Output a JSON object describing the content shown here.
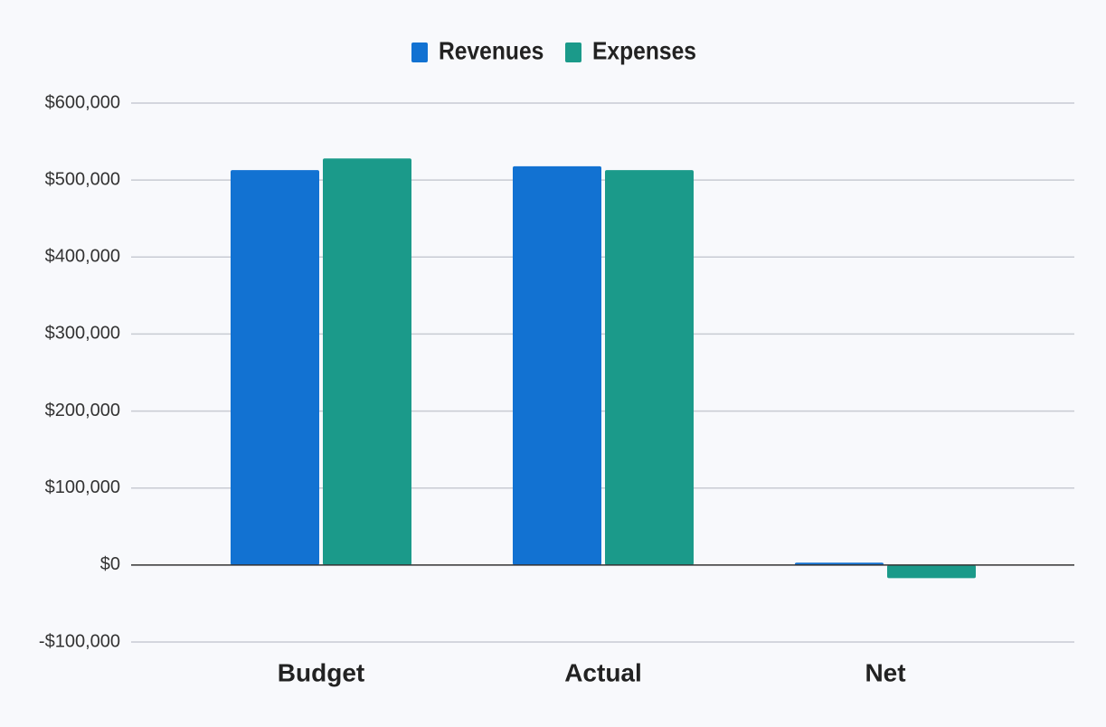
{
  "chart_data": {
    "type": "bar",
    "categories": [
      "Budget",
      "Actual",
      "Net"
    ],
    "series": [
      {
        "name": "Revenues",
        "color": "#1272d2",
        "values": [
          513000,
          518000,
          3000
        ]
      },
      {
        "name": "Expenses",
        "color": "#1b9a8a",
        "values": [
          528000,
          513000,
          -17000
        ]
      }
    ],
    "ylim": [
      -100000,
      600000
    ],
    "yticks": [
      {
        "value": -100000,
        "label": "-$100,000"
      },
      {
        "value": 0,
        "label": "$0"
      },
      {
        "value": 100000,
        "label": "$100,000"
      },
      {
        "value": 200000,
        "label": "$200,000"
      },
      {
        "value": 300000,
        "label": "$300,000"
      },
      {
        "value": 400000,
        "label": "$400,000"
      },
      {
        "value": 500000,
        "label": "$500,000"
      },
      {
        "value": 600000,
        "label": "$600,000"
      }
    ],
    "grid": true,
    "legend": "top"
  }
}
